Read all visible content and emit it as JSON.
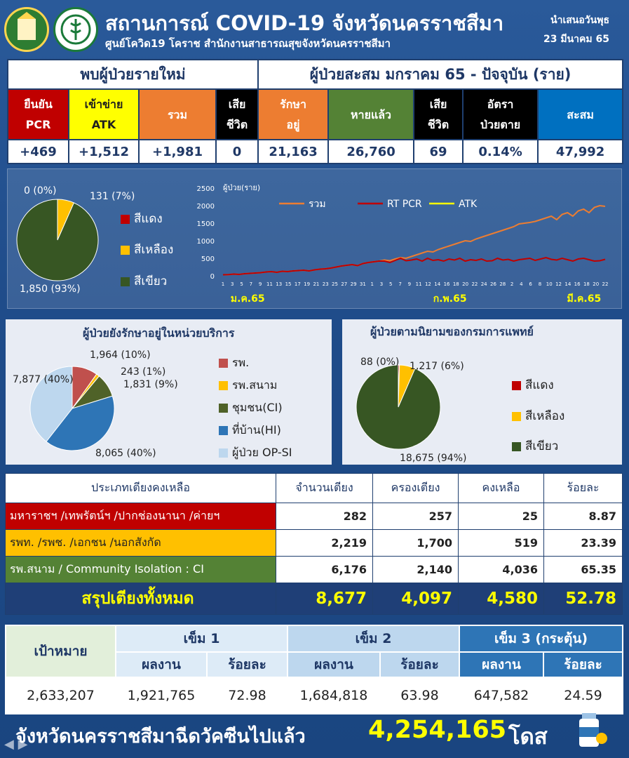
{
  "header": {
    "title": "สถานการณ์ COVID-19 จังหวัดนครราชสีมา",
    "subtitle": "ศูนย์โควิด19 โคราช สำนักงานสาธารณสุขจังหวัดนครราชสีมา",
    "presented_line1": "นำเสนอวันพุธ",
    "presented_line2": "23 มีนาคม 65"
  },
  "new_cases": {
    "heading": "พบผู้ป่วยรายใหม่",
    "pcr_label_1": "ยืนยัน",
    "pcr_label_2": "PCR",
    "pcr_value": "+469",
    "atk_label_1": "เข้าข่าย",
    "atk_label_2": "ATK",
    "atk_value": "+1,512",
    "total_label": "รวม",
    "total_value": "+1,981",
    "death_label_1": "เสีย",
    "death_label_2": "ชีวิต",
    "death_value": "0"
  },
  "cumulative": {
    "heading": "ผู้ป่วยสะสม มกราคม 65 - ปัจจุบัน (ราย)",
    "treating_label_1": "รักษา",
    "treating_label_2": "อยู่",
    "treating_value": "21,163",
    "recovered_label": "หายแล้ว",
    "recovered_value": "26,760",
    "death_label_1": "เสีย",
    "death_label_2": "ชีวิต",
    "death_value": "69",
    "rate_label_1": "อัตรา",
    "rate_label_2": "ป่วยตาย",
    "rate_value": "0.14%",
    "total_label": "สะสม",
    "total_value": "47,992"
  },
  "colors": {
    "red": "#c00000",
    "yellow": "#ffc000",
    "green": "#375623",
    "sum_line": "#ed7d31",
    "pcr_line": "#c00000",
    "atk_line": "#ffff00",
    "hospital": "#c0504d",
    "field": "#ffc000",
    "ci": "#4f6228",
    "hi": "#2e75b6",
    "opsi": "#bdd7ee"
  },
  "legend_severity": {
    "red": "สีแดง",
    "yellow": "สีเหลือง",
    "green": "สีเขียว"
  },
  "chart_data": [
    {
      "type": "pie",
      "labels": [
        "สีแดง",
        "สีเหลือง",
        "สีเขียว"
      ],
      "values": [
        0,
        131,
        1850
      ],
      "value_labels": [
        "0 (0%)",
        "131 (7%)",
        "1,850 (93%)"
      ]
    },
    {
      "type": "line",
      "ylabel": "ผู้ป่วย(ราย)",
      "ylim": [
        0,
        2500
      ],
      "yticks": [
        "2500",
        "2000",
        "1500",
        "1000",
        "500",
        "0"
      ],
      "month_labels": [
        "ม.ค.65",
        "ก.พ.65",
        "มี.ค.65"
      ],
      "x_ticks": [
        "1",
        "3",
        "5",
        "7",
        "9",
        "11",
        "13",
        "15",
        "17",
        "19",
        "21",
        "23",
        "25",
        "27",
        "29",
        "31",
        "1",
        "3",
        "5",
        "7",
        "9",
        "11",
        "12",
        "14",
        "16",
        "18",
        "20",
        "22",
        "24",
        "26",
        "28",
        "2",
        "4",
        "6",
        "8",
        "10",
        "12",
        "14",
        "16",
        "18",
        "20",
        "22"
      ],
      "series": [
        {
          "name": "รวม",
          "values": [
            30,
            35,
            50,
            40,
            60,
            70,
            80,
            90,
            110,
            120,
            100,
            130,
            120,
            140,
            150,
            160,
            140,
            170,
            190,
            200,
            220,
            250,
            280,
            300,
            320,
            290,
            350,
            380,
            400,
            420,
            450,
            430,
            480,
            520,
            500,
            550,
            600,
            650,
            700,
            680,
            750,
            800,
            850,
            900,
            950,
            1000,
            980,
            1050,
            1100,
            1150,
            1200,
            1250,
            1300,
            1350,
            1400,
            1480,
            1500,
            1520,
            1550,
            1600,
            1650,
            1700,
            1600,
            1750,
            1800,
            1700,
            1850,
            1900,
            1800,
            1950,
            2000,
            1981
          ]
        },
        {
          "name": "RT PCR",
          "values": [
            30,
            35,
            50,
            40,
            60,
            70,
            80,
            90,
            110,
            120,
            100,
            130,
            120,
            140,
            150,
            160,
            140,
            170,
            190,
            200,
            220,
            250,
            280,
            300,
            320,
            290,
            350,
            380,
            400,
            420,
            420,
            380,
            440,
            500,
            430,
            450,
            480,
            420,
            500,
            440,
            460,
            420,
            480,
            450,
            500,
            420,
            460,
            440,
            480,
            420,
            430,
            500,
            450,
            470,
            420,
            460,
            480,
            500,
            440,
            480,
            520,
            470,
            450,
            500,
            460,
            420,
            480,
            500,
            460,
            420,
            430,
            469
          ]
        },
        {
          "name": "ATK",
          "values": [
            null,
            null,
            null,
            null,
            null,
            null,
            null,
            null,
            null,
            null,
            null,
            null,
            null,
            null,
            null,
            null,
            null,
            null,
            null,
            null,
            null,
            null,
            null,
            null,
            null,
            null,
            null,
            null,
            null,
            null,
            null,
            null,
            null,
            null,
            null,
            null,
            null,
            null,
            null,
            null,
            null,
            null,
            null,
            null,
            null,
            null,
            null,
            null,
            null,
            null,
            null,
            null,
            null,
            null,
            null,
            null,
            null,
            null,
            null,
            null,
            null,
            null,
            null,
            null,
            null,
            null,
            null,
            null,
            null,
            null,
            null,
            null
          ]
        }
      ]
    },
    {
      "type": "pie",
      "title": "ผู้ป่วยยังรักษาอยู่ในหน่วยบริการ",
      "labels": [
        "รพ.",
        "รพ.สนาม",
        "ชุมชน(CI)",
        "ที่บ้าน(HI)",
        "ผู้ป่วย OP-SI"
      ],
      "values": [
        1964,
        243,
        1831,
        8065,
        7877
      ],
      "value_labels": [
        "1,964 (10%)",
        "243 (1%)",
        "1,831 (9%)",
        "8,065 (40%)",
        "7,877 (40%)"
      ]
    },
    {
      "type": "pie",
      "title": "ผู้ป่วยตามนิยามของกรมการแพทย์",
      "labels": [
        "สีแดง",
        "สีเหลือง",
        "สีเขียว"
      ],
      "values": [
        88,
        1217,
        18675
      ],
      "value_labels": [
        "88 (0%)",
        "1,217 (6%)",
        "18,675 (94%)"
      ]
    }
  ],
  "beds": {
    "headers": [
      "ประเภทเตียงคงเหลือ",
      "จำนวนเตียง",
      "ครองเตียง",
      "คงเหลือ",
      "ร้อยละ"
    ],
    "rows": [
      {
        "name": "มหาราชฯ /เทพรัตน์ฯ /ปากช่องนานา /ค่ายฯ",
        "beds": "282",
        "occupied": "257",
        "remaining": "25",
        "percent": "8.87"
      },
      {
        "name": "รพท. /รพช. /เอกชน /นอกสังกัด",
        "beds": "2,219",
        "occupied": "1,700",
        "remaining": "519",
        "percent": "23.39"
      },
      {
        "name": "รพ.สนาม / Community Isolation : CI",
        "beds": "6,176",
        "occupied": "2,140",
        "remaining": "4,036",
        "percent": "65.35"
      }
    ],
    "total": {
      "name": "สรุปเตียงทั้งหมด",
      "beds": "8,677",
      "occupied": "4,097",
      "remaining": "4,580",
      "percent": "52.78"
    }
  },
  "vaccine": {
    "target_label": "เป้าหมาย",
    "dose1": "เข็ม 1",
    "dose2": "เข็ม 2",
    "dose3": "เข็ม 3 (กระตุ้น)",
    "result_label": "ผลงาน",
    "percent_label": "ร้อยละ",
    "target_value": "2,633,207",
    "d1_result": "1,921,765",
    "d1_percent": "72.98",
    "d2_result": "1,684,818",
    "d2_percent": "63.98",
    "d3_result": "647,582",
    "d3_percent": "24.59"
  },
  "footer": {
    "text": "จังหวัดนครราชสีมาฉีดวัคซีนไปแล้ว",
    "value": "4,254,165",
    "unit": "โดส"
  }
}
